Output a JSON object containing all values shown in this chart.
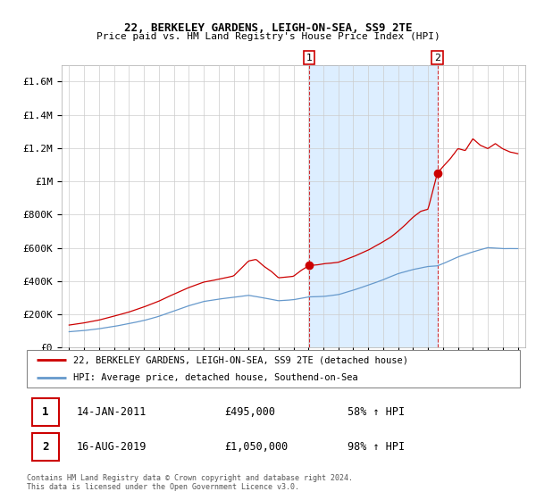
{
  "title": "22, BERKELEY GARDENS, LEIGH-ON-SEA, SS9 2TE",
  "subtitle": "Price paid vs. HM Land Registry's House Price Index (HPI)",
  "legend_line1": "22, BERKELEY GARDENS, LEIGH-ON-SEA, SS9 2TE (detached house)",
  "legend_line2": "HPI: Average price, detached house, Southend-on-Sea",
  "sale1_date": "14-JAN-2011",
  "sale1_price": "£495,000",
  "sale1_hpi": "58% ↑ HPI",
  "sale1_year": 2011.04,
  "sale1_value": 495000,
  "sale2_date": "16-AUG-2019",
  "sale2_price": "£1,050,000",
  "sale2_hpi": "98% ↑ HPI",
  "sale2_year": 2019.62,
  "sale2_value": 1050000,
  "footnote1": "Contains HM Land Registry data © Crown copyright and database right 2024.",
  "footnote2": "This data is licensed under the Open Government Licence v3.0.",
  "red_color": "#cc0000",
  "blue_color": "#6699cc",
  "shade_color": "#ddeeff",
  "background_color": "#ffffff",
  "grid_color": "#cccccc",
  "ylim": [
    0,
    1700000
  ],
  "xlim": [
    1994.5,
    2025.5
  ]
}
